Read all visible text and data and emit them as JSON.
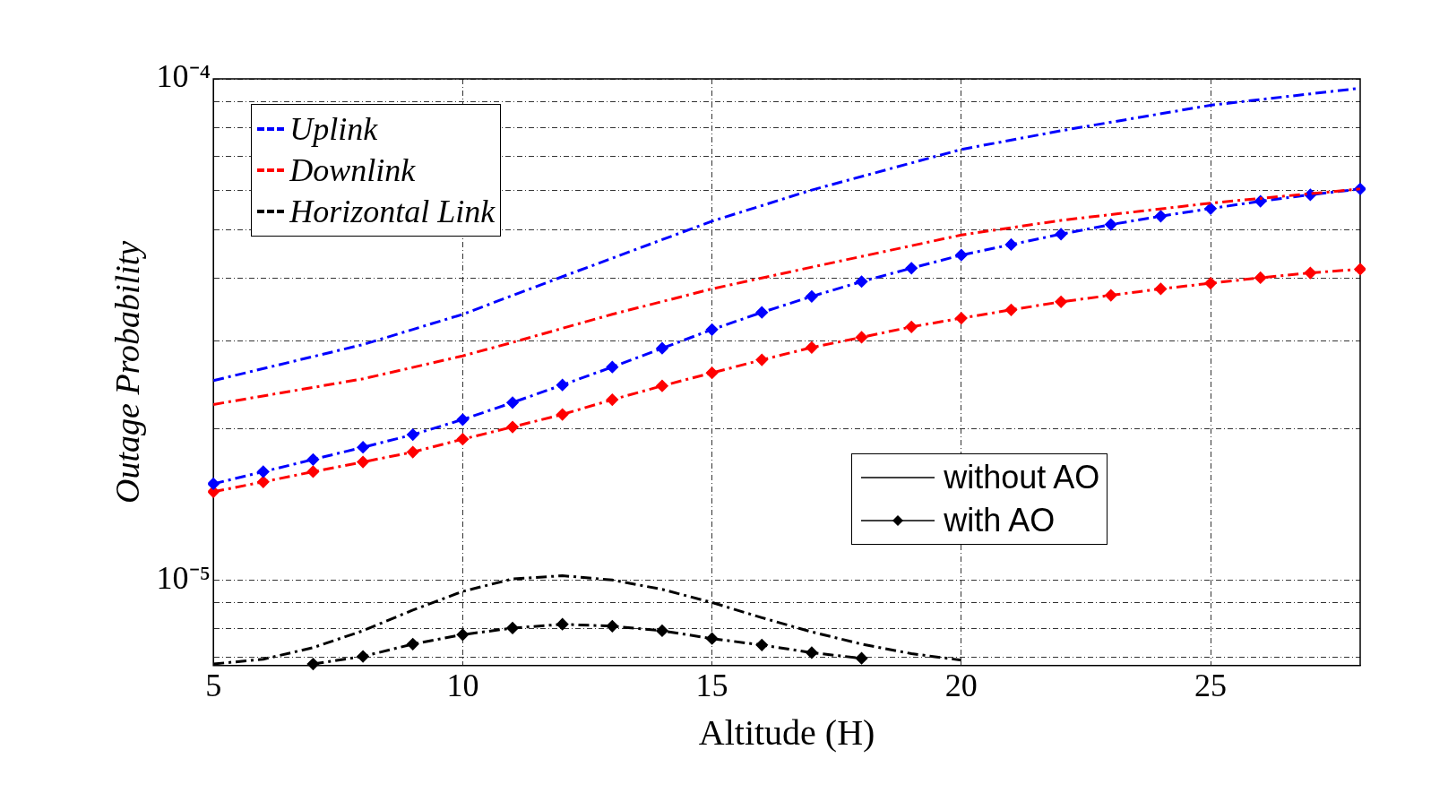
{
  "chart_data": {
    "type": "line",
    "xlabel": "Altitude (H)",
    "ylabel": "Outage Probability",
    "xlim": [
      5,
      28
    ],
    "xticks": [
      5,
      10,
      15,
      20,
      25
    ],
    "ylim": [
      6.75e-06,
      0.0001
    ],
    "log": "y",
    "yticks": [
      {
        "value": 7e-06,
        "label": null
      },
      {
        "value": 8e-06,
        "label": null
      },
      {
        "value": 9e-06,
        "label": null
      },
      {
        "value": 1e-05,
        "label": "10⁻⁵"
      },
      {
        "value": 2e-05,
        "label": null
      },
      {
        "value": 3e-05,
        "label": null
      },
      {
        "value": 4e-05,
        "label": null
      },
      {
        "value": 5e-05,
        "label": null
      },
      {
        "value": 6e-05,
        "label": null
      },
      {
        "value": 7e-05,
        "label": null
      },
      {
        "value": 8e-05,
        "label": null
      },
      {
        "value": 9e-05,
        "label": null
      },
      {
        "value": 0.0001,
        "label": "10⁻⁴"
      }
    ],
    "grid": true,
    "legend": "top left",
    "line_style": "dashed",
    "annotations": [
      "without AO",
      "with AO"
    ],
    "series": [
      {
        "name": "Uplink",
        "color": "#0000ff",
        "marker": "none",
        "x": [
          5,
          8,
          10,
          12,
          15,
          17,
          20,
          22,
          25,
          28
        ],
        "values": [
          2.5e-05,
          2.95e-05,
          3.39e-05,
          4.03e-05,
          5.2e-05,
          6e-05,
          7.23e-05,
          7.88e-05,
          8.86e-05,
          9.58e-05
        ]
      },
      {
        "name": "Downlink",
        "color": "#ff0000",
        "marker": "none",
        "x": [
          5,
          8,
          10,
          11,
          13,
          15,
          17,
          20,
          22,
          25,
          28
        ],
        "values": [
          2.24e-05,
          2.52e-05,
          2.8e-05,
          2.98e-05,
          3.39e-05,
          3.81e-05,
          4.21e-05,
          4.88e-05,
          5.22e-05,
          5.65e-05,
          6.03e-05
        ]
      },
      {
        "name": "Horizontal Link",
        "color": "#000000",
        "marker": "none",
        "x": [
          5,
          6,
          7,
          8,
          9,
          10,
          11,
          12,
          13,
          14,
          15,
          16,
          17,
          18,
          19,
          20
        ],
        "values": [
          6.8e-06,
          6.95e-06,
          7.33e-06,
          7.92e-06,
          8.71e-06,
          9.49e-06,
          1.005e-05,
          1.02e-05,
          1e-05,
          9.58e-06,
          9.02e-06,
          8.41e-06,
          7.88e-06,
          7.45e-06,
          7.13e-06,
          6.92e-06
        ]
      },
      {
        "color": "#0000ff",
        "marker": "diamond",
        "x": [
          5,
          6,
          7,
          8,
          9,
          10,
          11,
          12,
          13,
          14,
          15,
          16,
          17,
          18,
          19,
          20,
          21,
          22,
          23,
          24,
          25,
          26,
          27,
          28
        ],
        "values": [
          1.556e-05,
          1.645e-05,
          1.74e-05,
          1.84e-05,
          1.95e-05,
          2.09e-05,
          2.26e-05,
          2.45e-05,
          2.66e-05,
          2.9e-05,
          3.16e-05,
          3.42e-05,
          3.68e-05,
          3.94e-05,
          4.19e-05,
          4.45e-05,
          4.67e-05,
          4.9e-05,
          5.12e-05,
          5.32e-05,
          5.51e-05,
          5.7e-05,
          5.87e-05,
          6.03e-05
        ]
      },
      {
        "color": "#ff0000",
        "marker": "diamond",
        "x": [
          5,
          6,
          7,
          8,
          9,
          10,
          11,
          12,
          13,
          14,
          15,
          16,
          17,
          18,
          19,
          20,
          21,
          22,
          23,
          24,
          25,
          26,
          27,
          28
        ],
        "values": [
          1.5e-05,
          1.57e-05,
          1.645e-05,
          1.72e-05,
          1.8e-05,
          1.91e-05,
          2.02e-05,
          2.14e-05,
          2.29e-05,
          2.44e-05,
          2.59e-05,
          2.75e-05,
          2.91e-05,
          3.05e-05,
          3.2e-05,
          3.33e-05,
          3.46e-05,
          3.59e-05,
          3.7e-05,
          3.81e-05,
          3.91e-05,
          4.01e-05,
          4.1e-05,
          4.17e-05
        ]
      },
      {
        "color": "#000000",
        "marker": "diamond",
        "x": [
          7,
          8,
          9,
          10,
          11,
          12,
          13,
          14,
          15,
          16,
          17,
          18
        ],
        "values": [
          6.8e-06,
          7.04e-06,
          7.45e-06,
          7.78e-06,
          8.02e-06,
          8.16e-06,
          8.09e-06,
          7.92e-06,
          7.64e-06,
          7.42e-06,
          7.16e-06,
          6.98e-06
        ]
      }
    ]
  }
}
